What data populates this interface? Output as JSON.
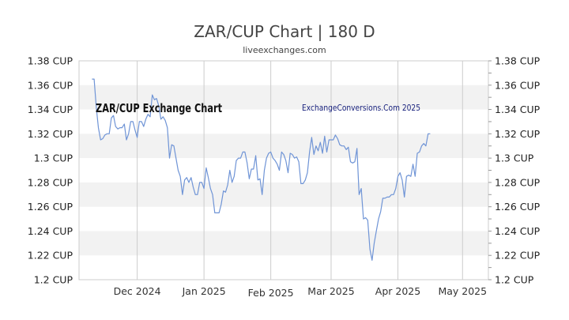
{
  "chart_data": {
    "type": "line",
    "title": "ZAR/CUP Chart | 180 D",
    "subtitle": "liveexchanges.com",
    "annotations": [
      "ZAR/CUP Exchange Chart",
      "ExchangeConversions.Com 2025"
    ],
    "y_unit": "CUP",
    "ylim": [
      1.2,
      1.38
    ],
    "y_ticks": [
      "1.38 CUP",
      "1.36 CUP",
      "1.34 CUP",
      "1.32 CUP",
      "1.3 CUP",
      "1.28 CUP",
      "1.26 CUP",
      "1.24 CUP",
      "1.22 CUP",
      "1.2 CUP"
    ],
    "x_ticks": [
      {
        "label": "Dec 2024",
        "x": 1
      },
      {
        "label": "Jan 2025",
        "x": 32
      },
      {
        "label": "Feb 2025",
        "x": 63
      },
      {
        "label": "Mar 2025",
        "x": 91
      },
      {
        "label": "Apr 2025",
        "x": 122
      },
      {
        "label": "May 2025",
        "x": 152
      }
    ],
    "xlim": [
      -26,
      164
    ],
    "grid": "alternating horizontal bands, vertical month lines",
    "line_color": "#6f94d6",
    "series": [
      {
        "points": [
          [
            -20,
            1.365
          ],
          [
            -19,
            1.365
          ],
          [
            -18,
            1.342
          ],
          [
            -17,
            1.325
          ],
          [
            -16,
            1.315
          ],
          [
            -15,
            1.316
          ],
          [
            -14,
            1.319
          ],
          [
            -13,
            1.32
          ],
          [
            -12,
            1.32
          ],
          [
            -11,
            1.333
          ],
          [
            -10,
            1.335
          ],
          [
            -9,
            1.326
          ],
          [
            -8,
            1.324
          ],
          [
            -7,
            1.325
          ],
          [
            -6,
            1.325
          ],
          [
            -5,
            1.328
          ],
          [
            -4,
            1.315
          ],
          [
            -3,
            1.32
          ],
          [
            -2,
            1.33
          ],
          [
            -1,
            1.33
          ],
          [
            0,
            1.323
          ],
          [
            1,
            1.317
          ],
          [
            2,
            1.33
          ],
          [
            3,
            1.33
          ],
          [
            4,
            1.326
          ],
          [
            5,
            1.332
          ],
          [
            6,
            1.336
          ],
          [
            7,
            1.334
          ],
          [
            8,
            1.352
          ],
          [
            9,
            1.348
          ],
          [
            10,
            1.349
          ],
          [
            11,
            1.343
          ],
          [
            12,
            1.332
          ],
          [
            13,
            1.334
          ],
          [
            14,
            1.331
          ],
          [
            15,
            1.325
          ],
          [
            16,
            1.3
          ],
          [
            17,
            1.311
          ],
          [
            18,
            1.31
          ],
          [
            19,
            1.3
          ],
          [
            20,
            1.29
          ],
          [
            21,
            1.285
          ],
          [
            22,
            1.27
          ],
          [
            23,
            1.282
          ],
          [
            24,
            1.284
          ],
          [
            25,
            1.28
          ],
          [
            26,
            1.284
          ],
          [
            27,
            1.276
          ],
          [
            28,
            1.27
          ],
          [
            29,
            1.27
          ],
          [
            30,
            1.28
          ],
          [
            31,
            1.28
          ],
          [
            32,
            1.275
          ],
          [
            33,
            1.292
          ],
          [
            34,
            1.284
          ],
          [
            35,
            1.275
          ],
          [
            36,
            1.27
          ],
          [
            37,
            1.255
          ],
          [
            38,
            1.255
          ],
          [
            39,
            1.255
          ],
          [
            40,
            1.262
          ],
          [
            41,
            1.273
          ],
          [
            42,
            1.272
          ],
          [
            43,
            1.278
          ],
          [
            44,
            1.29
          ],
          [
            45,
            1.28
          ],
          [
            46,
            1.285
          ],
          [
            47,
            1.298
          ],
          [
            48,
            1.3
          ],
          [
            49,
            1.3
          ],
          [
            50,
            1.305
          ],
          [
            51,
            1.305
          ],
          [
            52,
            1.296
          ],
          [
            53,
            1.283
          ],
          [
            54,
            1.291
          ],
          [
            55,
            1.291
          ],
          [
            56,
            1.302
          ],
          [
            57,
            1.282
          ],
          [
            58,
            1.283
          ],
          [
            59,
            1.27
          ],
          [
            60,
            1.29
          ],
          [
            61,
            1.3
          ],
          [
            62,
            1.304
          ],
          [
            63,
            1.305
          ],
          [
            64,
            1.3
          ],
          [
            65,
            1.298
          ],
          [
            66,
            1.295
          ],
          [
            67,
            1.29
          ],
          [
            68,
            1.305
          ],
          [
            69,
            1.303
          ],
          [
            70,
            1.298
          ],
          [
            71,
            1.288
          ],
          [
            72,
            1.304
          ],
          [
            73,
            1.303
          ],
          [
            74,
            1.3
          ],
          [
            75,
            1.301
          ],
          [
            76,
            1.297
          ],
          [
            77,
            1.279
          ],
          [
            78,
            1.279
          ],
          [
            79,
            1.282
          ],
          [
            80,
            1.288
          ],
          [
            81,
            1.305
          ],
          [
            82,
            1.317
          ],
          [
            83,
            1.303
          ],
          [
            84,
            1.31
          ],
          [
            85,
            1.306
          ],
          [
            86,
            1.313
          ],
          [
            87,
            1.304
          ],
          [
            88,
            1.318
          ],
          [
            89,
            1.305
          ],
          [
            90,
            1.315
          ],
          [
            91,
            1.315
          ],
          [
            92,
            1.315
          ],
          [
            93,
            1.319
          ],
          [
            94,
            1.316
          ],
          [
            95,
            1.311
          ],
          [
            96,
            1.31
          ],
          [
            97,
            1.31
          ],
          [
            98,
            1.307
          ],
          [
            99,
            1.309
          ],
          [
            100,
            1.297
          ],
          [
            101,
            1.296
          ],
          [
            102,
            1.297
          ],
          [
            103,
            1.308
          ],
          [
            104,
            1.27
          ],
          [
            105,
            1.275
          ],
          [
            106,
            1.25
          ],
          [
            107,
            1.251
          ],
          [
            108,
            1.249
          ],
          [
            109,
            1.225
          ],
          [
            110,
            1.216
          ],
          [
            111,
            1.23
          ],
          [
            112,
            1.24
          ],
          [
            113,
            1.25
          ],
          [
            114,
            1.256
          ],
          [
            115,
            1.267
          ],
          [
            116,
            1.267
          ],
          [
            117,
            1.268
          ],
          [
            118,
            1.268
          ],
          [
            119,
            1.27
          ],
          [
            120,
            1.27
          ],
          [
            121,
            1.275
          ],
          [
            122,
            1.285
          ],
          [
            123,
            1.288
          ],
          [
            124,
            1.282
          ],
          [
            125,
            1.268
          ],
          [
            126,
            1.285
          ],
          [
            127,
            1.286
          ],
          [
            128,
            1.285
          ],
          [
            129,
            1.295
          ],
          [
            130,
            1.285
          ],
          [
            131,
            1.304
          ],
          [
            132,
            1.305
          ],
          [
            133,
            1.31
          ],
          [
            134,
            1.312
          ],
          [
            135,
            1.31
          ],
          [
            136,
            1.32
          ],
          [
            137,
            1.32
          ]
        ]
      }
    ]
  }
}
